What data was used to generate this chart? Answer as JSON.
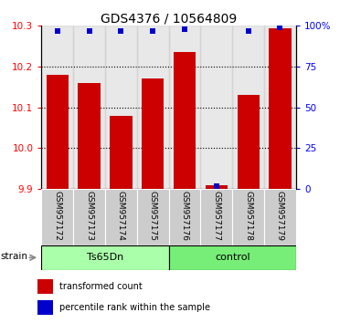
{
  "title": "GDS4376 / 10564809",
  "samples": [
    "GSM957172",
    "GSM957173",
    "GSM957174",
    "GSM957175",
    "GSM957176",
    "GSM957177",
    "GSM957178",
    "GSM957179"
  ],
  "red_values": [
    10.18,
    10.16,
    10.08,
    10.17,
    10.235,
    9.91,
    10.13,
    10.295
  ],
  "blue_values": [
    97,
    97,
    97,
    97,
    98,
    2,
    97,
    99
  ],
  "ylim_left": [
    9.9,
    10.3
  ],
  "ylim_right": [
    0,
    100
  ],
  "yticks_left": [
    9.9,
    10.0,
    10.1,
    10.2,
    10.3
  ],
  "yticks_right": [
    0,
    25,
    50,
    75,
    100
  ],
  "ytick_labels_right": [
    "0",
    "25",
    "50",
    "75",
    "100%"
  ],
  "bar_color": "#cc0000",
  "dot_color": "#0000cc",
  "bar_width": 0.7,
  "groups": [
    {
      "label": "Ts65Dn",
      "indices": [
        0,
        1,
        2,
        3
      ],
      "color": "#aaffaa"
    },
    {
      "label": "control",
      "indices": [
        4,
        5,
        6,
        7
      ],
      "color": "#77ee77"
    }
  ],
  "group_bar_bg": "#cccccc",
  "legend_red_label": "transformed count",
  "legend_blue_label": "percentile rank within the sample",
  "strain_label": "strain",
  "baseline": 9.9,
  "dotted_grid_values": [
    10.0,
    10.1,
    10.2
  ],
  "title_fontsize": 10,
  "tick_fontsize": 7.5,
  "sample_fontsize": 6.5,
  "group_fontsize": 8,
  "legend_fontsize": 7
}
